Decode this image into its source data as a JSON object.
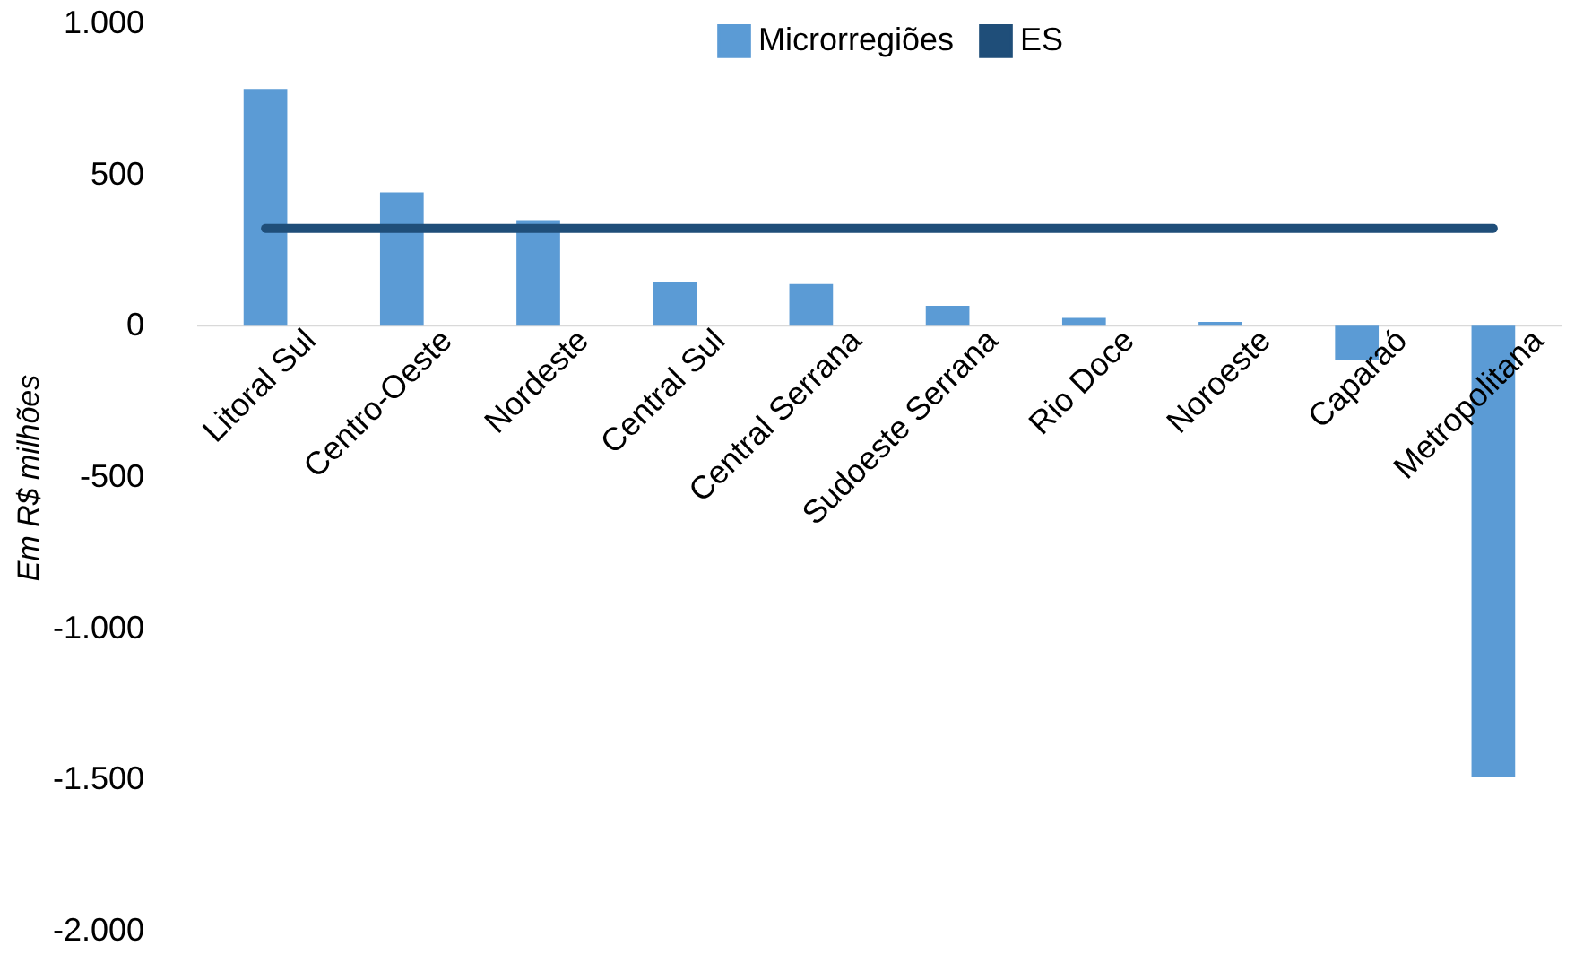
{
  "chart_data": {
    "type": "bar",
    "ylabel": "Em R$ milhões",
    "categories": [
      "Litoral Sul",
      "Centro-Oeste",
      "Nordeste",
      "Central Sul",
      "Central Serrana",
      "Sudoeste Serrana",
      "Rio Doce",
      "Noroeste",
      "Caparaó",
      "Metropolitana"
    ],
    "series": [
      {
        "name": "Microrregiões",
        "color": "#5b9bd5",
        "values": [
          783,
          441,
          349,
          145,
          138,
          66,
          26,
          13,
          -112,
          -1493
        ]
      },
      {
        "name": "ES",
        "type": "line",
        "color": "#1f4e79",
        "values": [
          322,
          322,
          322,
          322,
          322,
          322,
          322,
          322,
          322,
          322
        ]
      }
    ],
    "ylim": [
      -2000,
      1000
    ],
    "yticks": [
      {
        "value": -2000,
        "label": "-2.000"
      },
      {
        "value": -1500,
        "label": "-1.500"
      },
      {
        "value": -1000,
        "label": "-1.000"
      },
      -500,
      0,
      500,
      {
        "value": 1000,
        "label": "1.000"
      }
    ],
    "grid": false,
    "legend": "top"
  }
}
